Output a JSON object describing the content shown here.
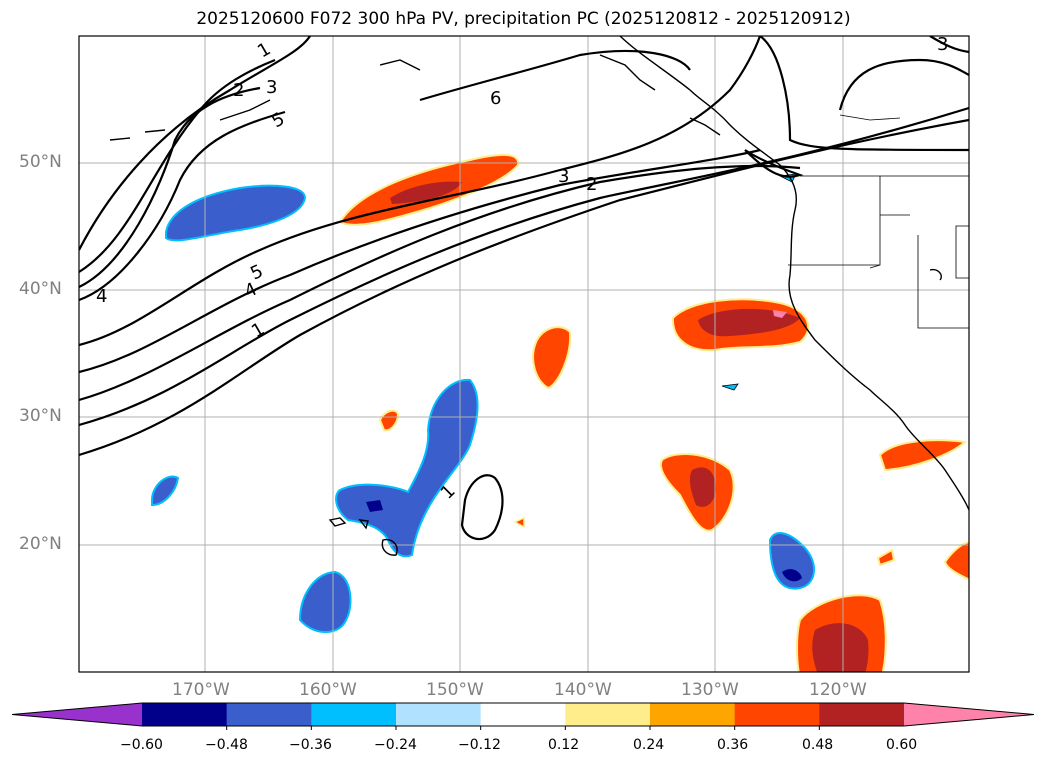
{
  "title": "2025120600 F072 300 hPa PV, precipitation PC (2025120812 - 2025120912)",
  "lat_labels": [
    "50°N",
    "40°N",
    "30°N",
    "20°N"
  ],
  "lon_labels": [
    "170°W",
    "160°W",
    "150°W",
    "140°W",
    "130°W",
    "120°W"
  ],
  "contour_labels": [
    "1",
    "2",
    "3",
    "5",
    "6",
    "3",
    "2",
    "3",
    "5",
    "4",
    "4",
    "1",
    "1"
  ],
  "colorbar": {
    "ticks": [
      "−0.60",
      "−0.48",
      "−0.36",
      "−0.24",
      "−0.12",
      "0.12",
      "0.24",
      "0.36",
      "0.48",
      "0.60"
    ],
    "colors": [
      "#9932cc",
      "#00008b",
      "#3a5fcd",
      "#00bfff",
      "#b0e2ff",
      "#ffffff",
      "#ffec8b",
      "#ffa500",
      "#ff4500",
      "#b22222",
      "#ff82ab"
    ]
  }
}
